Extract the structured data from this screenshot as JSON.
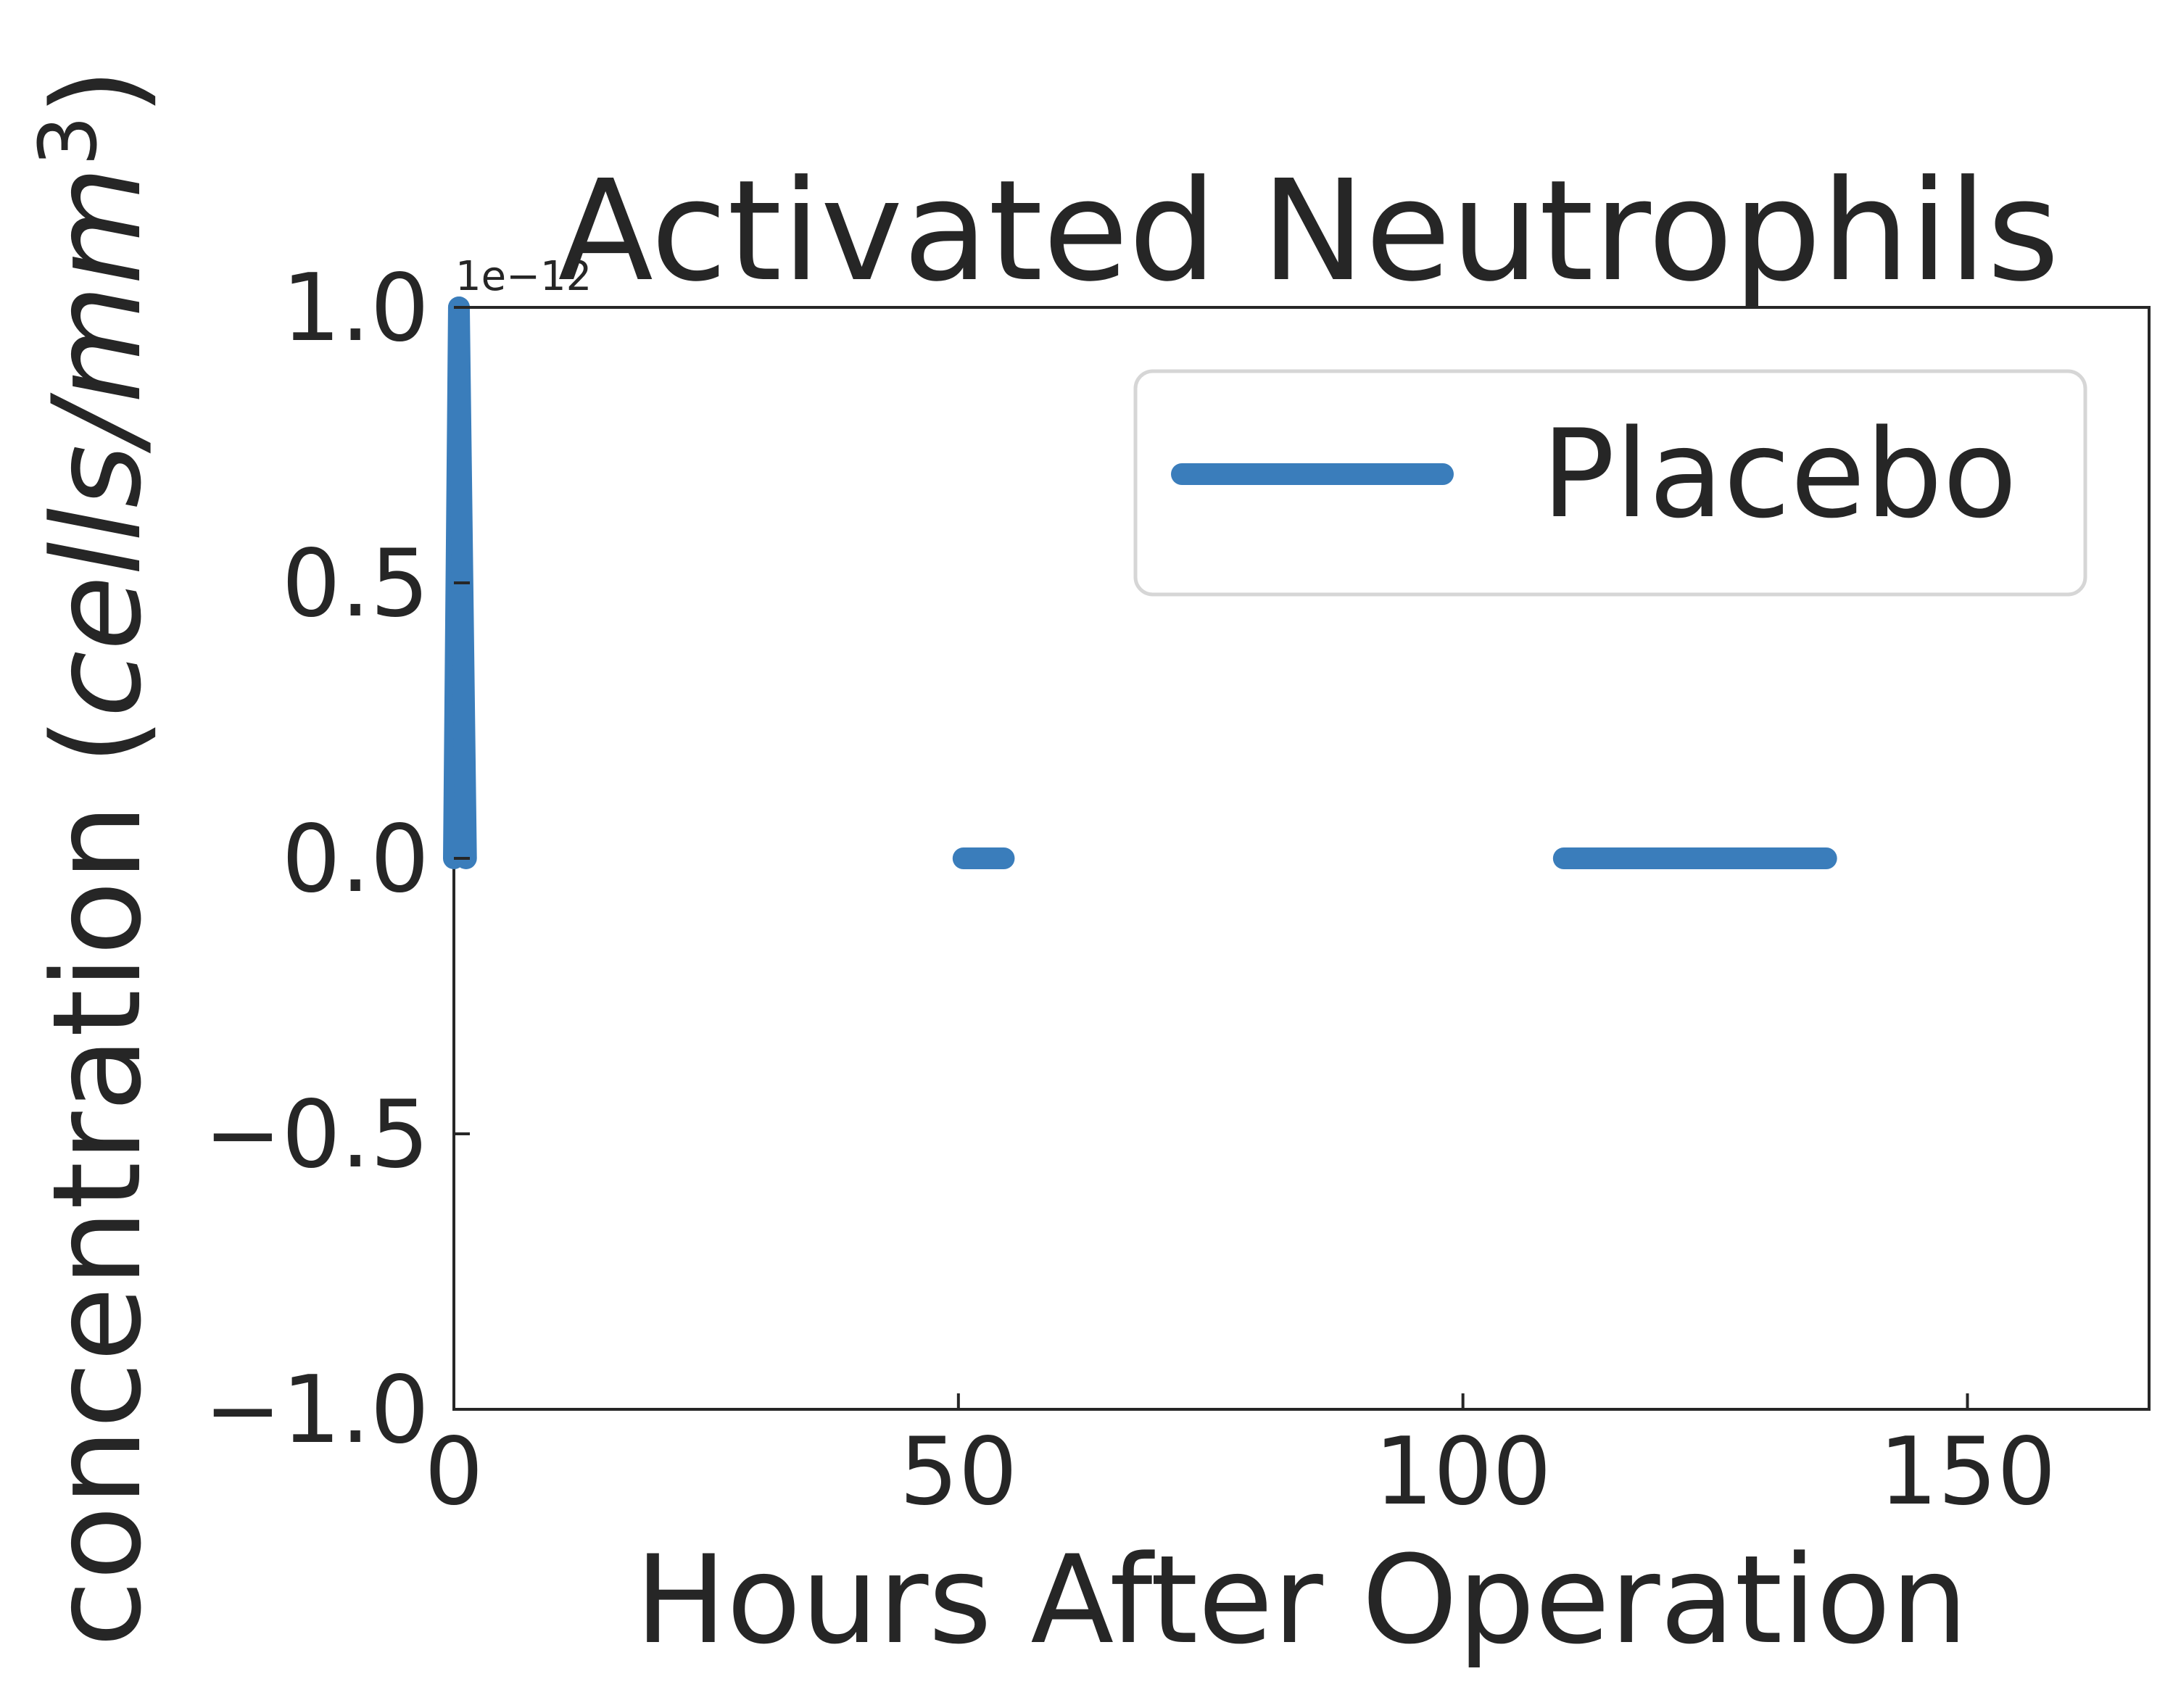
{
  "chart_data": {
    "type": "line",
    "title": "Activated Neutrophils",
    "xlabel": "Hours After Operation",
    "ylabel_main": "concentration (",
    "ylabel_unit": "cells/mm",
    "ylabel_exp": "3",
    "ylabel_close": ")",
    "offset_text": "1e−12",
    "xlim": [
      0,
      168
    ],
    "ylim": [
      -1.0,
      1.0
    ],
    "x_ticks": [
      {
        "value": 0,
        "label": "0"
      },
      {
        "value": 50,
        "label": "50"
      },
      {
        "value": 100,
        "label": "100"
      },
      {
        "value": 150,
        "label": "150"
      }
    ],
    "y_ticks": [
      {
        "value": -1.0,
        "label": "−1.0"
      },
      {
        "value": -0.5,
        "label": "−0.5"
      },
      {
        "value": 0.0,
        "label": "0.0"
      },
      {
        "value": 0.5,
        "label": "0.5"
      },
      {
        "value": 1.0,
        "label": "1.0"
      }
    ],
    "grid": false,
    "legend_position": "top-right",
    "series": [
      {
        "name": "Placebo",
        "color": "#3a7dbb",
        "segments": [
          [
            {
              "x": 0,
              "y": 0.0
            },
            {
              "x": 0.5,
              "y": 1.0
            }
          ],
          [
            {
              "x": 0.5,
              "y": 1.0
            },
            {
              "x": 1.2,
              "y": 0.0
            }
          ],
          [
            {
              "x": 50.5,
              "y": 0.0
            },
            {
              "x": 54.5,
              "y": 0.0
            }
          ],
          [
            {
              "x": 110,
              "y": 0.0
            },
            {
              "x": 136,
              "y": 0.0
            }
          ]
        ]
      }
    ]
  }
}
